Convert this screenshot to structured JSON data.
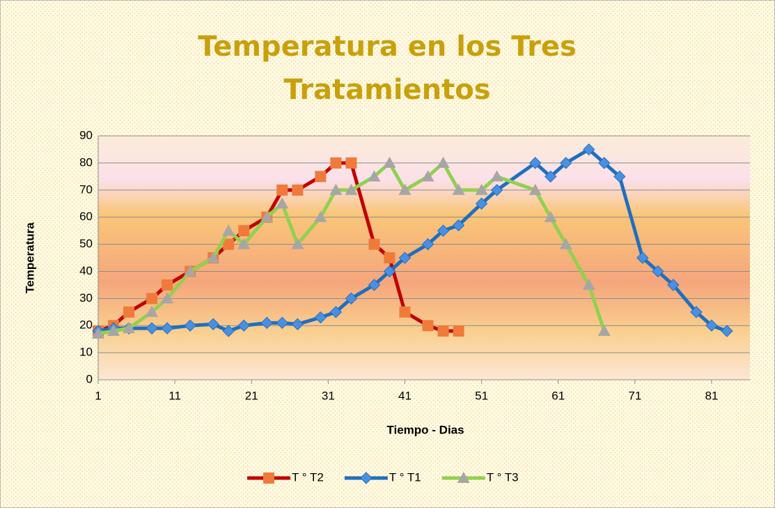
{
  "chart_data": {
    "type": "line",
    "title": "Temperatura en los Tres Tratamientos",
    "x_label": "Tiempo - Dias",
    "y_label": "Temperatura",
    "xlim": [
      1,
      86
    ],
    "ylim": [
      0,
      90
    ],
    "xticks": [
      1,
      11,
      21,
      31,
      41,
      51,
      61,
      71,
      81
    ],
    "yticks": [
      0,
      10,
      20,
      30,
      40,
      50,
      60,
      70,
      80,
      90
    ],
    "grid": true,
    "legend": "bottom",
    "series": [
      {
        "name": "T ° T2",
        "color": "#c00000",
        "marker": "square",
        "marker_color": "#f07a3a",
        "x": [
          1,
          3,
          5,
          8,
          10,
          13,
          16,
          18,
          20,
          23,
          25,
          27,
          30,
          32,
          34,
          37,
          39,
          41,
          44,
          46,
          48
        ],
        "values": [
          18,
          20,
          25,
          30,
          35,
          40,
          45,
          50,
          55,
          60,
          70,
          70,
          75,
          80,
          80,
          50,
          45,
          25,
          20,
          18,
          18
        ]
      },
      {
        "name": "T ° T1",
        "color": "#1f6fbf",
        "marker": "diamond",
        "marker_color": "#4a90e2",
        "x": [
          1,
          3,
          5,
          8,
          10,
          13,
          16,
          18,
          20,
          23,
          25,
          27,
          30,
          32,
          34,
          37,
          39,
          41,
          44,
          46,
          48,
          51,
          53,
          58,
          60,
          62,
          65,
          67,
          69,
          72,
          74,
          76,
          79,
          81,
          83
        ],
        "values": [
          18,
          19,
          19,
          19,
          19,
          20,
          20.5,
          18,
          20,
          21,
          21,
          20.5,
          23,
          25,
          30,
          35,
          40,
          45,
          50,
          55,
          57,
          65,
          70,
          80,
          75,
          80,
          85,
          80,
          75,
          45,
          40,
          35,
          25,
          20,
          18
        ]
      },
      {
        "name": "T ° T3",
        "color": "#92d050",
        "marker": "triangle",
        "marker_color": "#a6a6a6",
        "x": [
          1,
          3,
          5,
          8,
          10,
          13,
          16,
          18,
          20,
          23,
          25,
          27,
          30,
          32,
          34,
          37,
          39,
          41,
          44,
          46,
          48,
          51,
          53,
          58,
          60,
          62,
          65,
          67
        ],
        "values": [
          17,
          18,
          19,
          25,
          30,
          40,
          45,
          55,
          50,
          60,
          65,
          50,
          60,
          70,
          70,
          75,
          80,
          70,
          75,
          80,
          70,
          70,
          75,
          70,
          60,
          50,
          35,
          18
        ]
      }
    ]
  }
}
